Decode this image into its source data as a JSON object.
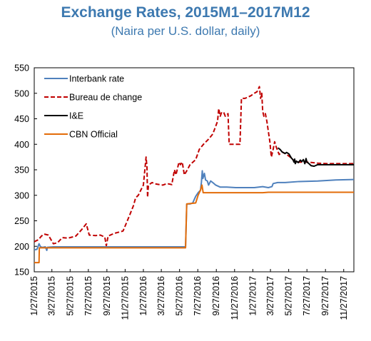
{
  "chart_data": {
    "type": "line",
    "title": "Exchange Rates, 2015M1–2017M12",
    "subtitle": "(Naira per U.S. dollar, daily)",
    "ylim": [
      150,
      550
    ],
    "yticks": [
      150,
      200,
      250,
      300,
      350,
      400,
      450,
      500,
      550
    ],
    "xlim": [
      "2015-01-27",
      "2017-12-31"
    ],
    "xtick_labels": [
      "1/27/2015",
      "3/27/2015",
      "5/27/2015",
      "7/27/2015",
      "9/27/2015",
      "11/27/2015",
      "1/27/2016",
      "3/27/2016",
      "5/27/2016",
      "7/27/2016",
      "9/27/2016",
      "11/27/2016",
      "1/27/2017",
      "3/27/2017",
      "5/27/2017",
      "7/27/2017",
      "9/27/2017",
      "11/27/2017"
    ],
    "legend_position": "top-left",
    "grid": false,
    "series": [
      {
        "name": "Interbank rate",
        "color": "#4f81bd",
        "dash": "solid",
        "points": [
          [
            "2015-01-27",
            193
          ],
          [
            "2015-02-05",
            194
          ],
          [
            "2015-02-12",
            205
          ],
          [
            "2015-02-17",
            199
          ],
          [
            "2015-02-24",
            198
          ],
          [
            "2015-03-05",
            199
          ],
          [
            "2015-03-10",
            192
          ],
          [
            "2015-03-12",
            198
          ],
          [
            "2015-04-01",
            199
          ],
          [
            "2015-06-01",
            199
          ],
          [
            "2015-09-01",
            199
          ],
          [
            "2015-12-01",
            199
          ],
          [
            "2016-03-01",
            199
          ],
          [
            "2016-06-16",
            199
          ],
          [
            "2016-06-20",
            283
          ],
          [
            "2016-07-01",
            283
          ],
          [
            "2016-07-10",
            285
          ],
          [
            "2016-07-20",
            298
          ],
          [
            "2016-07-28",
            305
          ],
          [
            "2016-08-05",
            310
          ],
          [
            "2016-08-08",
            325
          ],
          [
            "2016-08-11",
            348
          ],
          [
            "2016-08-13",
            333
          ],
          [
            "2016-08-18",
            343
          ],
          [
            "2016-08-22",
            330
          ],
          [
            "2016-08-28",
            328
          ],
          [
            "2016-09-01",
            320
          ],
          [
            "2016-09-08",
            328
          ],
          [
            "2016-09-15",
            325
          ],
          [
            "2016-09-25",
            320
          ],
          [
            "2016-10-10",
            316
          ],
          [
            "2016-11-01",
            316
          ],
          [
            "2016-12-01",
            315
          ],
          [
            "2017-01-01",
            315
          ],
          [
            "2017-02-01",
            315
          ],
          [
            "2017-03-01",
            317
          ],
          [
            "2017-03-20",
            315
          ],
          [
            "2017-04-01",
            317
          ],
          [
            "2017-04-05",
            323
          ],
          [
            "2017-04-20",
            325
          ],
          [
            "2017-05-15",
            325
          ],
          [
            "2017-07-01",
            327
          ],
          [
            "2017-09-01",
            328
          ],
          [
            "2017-11-01",
            330
          ],
          [
            "2017-12-31",
            331
          ]
        ]
      },
      {
        "name": "Bureau de change",
        "color": "#c00000",
        "dash": "dashed",
        "points": [
          [
            "2015-01-27",
            209
          ],
          [
            "2015-02-10",
            213
          ],
          [
            "2015-02-20",
            220
          ],
          [
            "2015-03-01",
            224
          ],
          [
            "2015-03-15",
            222
          ],
          [
            "2015-04-01",
            205
          ],
          [
            "2015-04-15",
            207
          ],
          [
            "2015-05-01",
            217
          ],
          [
            "2015-05-20",
            216
          ],
          [
            "2015-06-15",
            220
          ],
          [
            "2015-07-05",
            233
          ],
          [
            "2015-07-20",
            244
          ],
          [
            "2015-07-30",
            222
          ],
          [
            "2015-08-20",
            221
          ],
          [
            "2015-09-05",
            222
          ],
          [
            "2015-09-20",
            218
          ],
          [
            "2015-09-25",
            201
          ],
          [
            "2015-10-01",
            220
          ],
          [
            "2015-10-20",
            225
          ],
          [
            "2015-11-01",
            227
          ],
          [
            "2015-11-20",
            230
          ],
          [
            "2015-12-10",
            258
          ],
          [
            "2015-12-25",
            280
          ],
          [
            "2016-01-01",
            295
          ],
          [
            "2016-01-10",
            300
          ],
          [
            "2016-01-20",
            312
          ],
          [
            "2016-01-27",
            320
          ],
          [
            "2016-02-05",
            375
          ],
          [
            "2016-02-08",
            355
          ],
          [
            "2016-02-10",
            296
          ],
          [
            "2016-02-13",
            320
          ],
          [
            "2016-02-25",
            325
          ],
          [
            "2016-03-10",
            322
          ],
          [
            "2016-04-01",
            320
          ],
          [
            "2016-04-15",
            323
          ],
          [
            "2016-05-01",
            321
          ],
          [
            "2016-05-10",
            350
          ],
          [
            "2016-05-15",
            340
          ],
          [
            "2016-05-25",
            365
          ],
          [
            "2016-05-30",
            360
          ],
          [
            "2016-06-05",
            365
          ],
          [
            "2016-06-12",
            340
          ],
          [
            "2016-06-22",
            350
          ],
          [
            "2016-07-01",
            360
          ],
          [
            "2016-07-20",
            370
          ],
          [
            "2016-08-01",
            390
          ],
          [
            "2016-08-15",
            400
          ],
          [
            "2016-09-01",
            410
          ],
          [
            "2016-09-15",
            420
          ],
          [
            "2016-10-01",
            445
          ],
          [
            "2016-10-05",
            470
          ],
          [
            "2016-10-10",
            455
          ],
          [
            "2016-10-15",
            463
          ],
          [
            "2016-10-22",
            462
          ],
          [
            "2016-10-27",
            455
          ],
          [
            "2016-11-05",
            460
          ],
          [
            "2016-11-09",
            400
          ],
          [
            "2016-12-01",
            400
          ],
          [
            "2016-12-15",
            400
          ],
          [
            "2016-12-20",
            490
          ],
          [
            "2017-01-01",
            490
          ],
          [
            "2017-01-20",
            495
          ],
          [
            "2017-02-01",
            500
          ],
          [
            "2017-02-10",
            503
          ],
          [
            "2017-02-18",
            513
          ],
          [
            "2017-02-22",
            490
          ],
          [
            "2017-02-26",
            500
          ],
          [
            "2017-03-01",
            465
          ],
          [
            "2017-03-05",
            455
          ],
          [
            "2017-03-10",
            460
          ],
          [
            "2017-03-15",
            445
          ],
          [
            "2017-03-25",
            405
          ],
          [
            "2017-03-30",
            375
          ],
          [
            "2017-04-05",
            390
          ],
          [
            "2017-04-10",
            405
          ],
          [
            "2017-04-15",
            395
          ],
          [
            "2017-04-25",
            380
          ],
          [
            "2017-05-05",
            385
          ],
          [
            "2017-05-20",
            380
          ],
          [
            "2017-06-01",
            375
          ],
          [
            "2017-06-15",
            367
          ],
          [
            "2017-07-01",
            365
          ],
          [
            "2017-08-01",
            365
          ],
          [
            "2017-09-01",
            363
          ],
          [
            "2017-10-01",
            362
          ],
          [
            "2017-11-01",
            362
          ],
          [
            "2017-12-31",
            362
          ]
        ]
      },
      {
        "name": "I&E",
        "color": "#000000",
        "dash": "solid",
        "points": [
          [
            "2017-04-21",
            393
          ],
          [
            "2017-04-28",
            390
          ],
          [
            "2017-05-05",
            385
          ],
          [
            "2017-05-15",
            382
          ],
          [
            "2017-05-20",
            384
          ],
          [
            "2017-05-28",
            381
          ],
          [
            "2017-06-05",
            373
          ],
          [
            "2017-06-10",
            370
          ],
          [
            "2017-06-14",
            365
          ],
          [
            "2017-06-16",
            371
          ],
          [
            "2017-06-18",
            362
          ],
          [
            "2017-06-22",
            367
          ],
          [
            "2017-06-28",
            364
          ],
          [
            "2017-07-05",
            369
          ],
          [
            "2017-07-10",
            366
          ],
          [
            "2017-07-15",
            370
          ],
          [
            "2017-07-20",
            362
          ],
          [
            "2017-07-24",
            372
          ],
          [
            "2017-07-27",
            365
          ],
          [
            "2017-08-01",
            363
          ],
          [
            "2017-08-10",
            358
          ],
          [
            "2017-08-20",
            357
          ],
          [
            "2017-09-01",
            360
          ],
          [
            "2017-10-01",
            360
          ],
          [
            "2017-11-01",
            360
          ],
          [
            "2017-12-31",
            360
          ]
        ]
      },
      {
        "name": "CBN Official",
        "color": "#e36c09",
        "dash": "solid",
        "points": [
          [
            "2015-01-27",
            168
          ],
          [
            "2015-02-12",
            168
          ],
          [
            "2015-02-13",
            197
          ],
          [
            "2015-06-01",
            197
          ],
          [
            "2015-12-01",
            197
          ],
          [
            "2016-06-16",
            197
          ],
          [
            "2016-06-20",
            283
          ],
          [
            "2016-07-20",
            285
          ],
          [
            "2016-07-28",
            300
          ],
          [
            "2016-08-05",
            310
          ],
          [
            "2016-08-10",
            320
          ],
          [
            "2016-08-14",
            305
          ],
          [
            "2016-09-01",
            305
          ],
          [
            "2016-12-01",
            305
          ],
          [
            "2017-03-01",
            305
          ],
          [
            "2017-03-20",
            306
          ],
          [
            "2017-06-01",
            306
          ],
          [
            "2017-12-31",
            306
          ]
        ]
      }
    ]
  }
}
